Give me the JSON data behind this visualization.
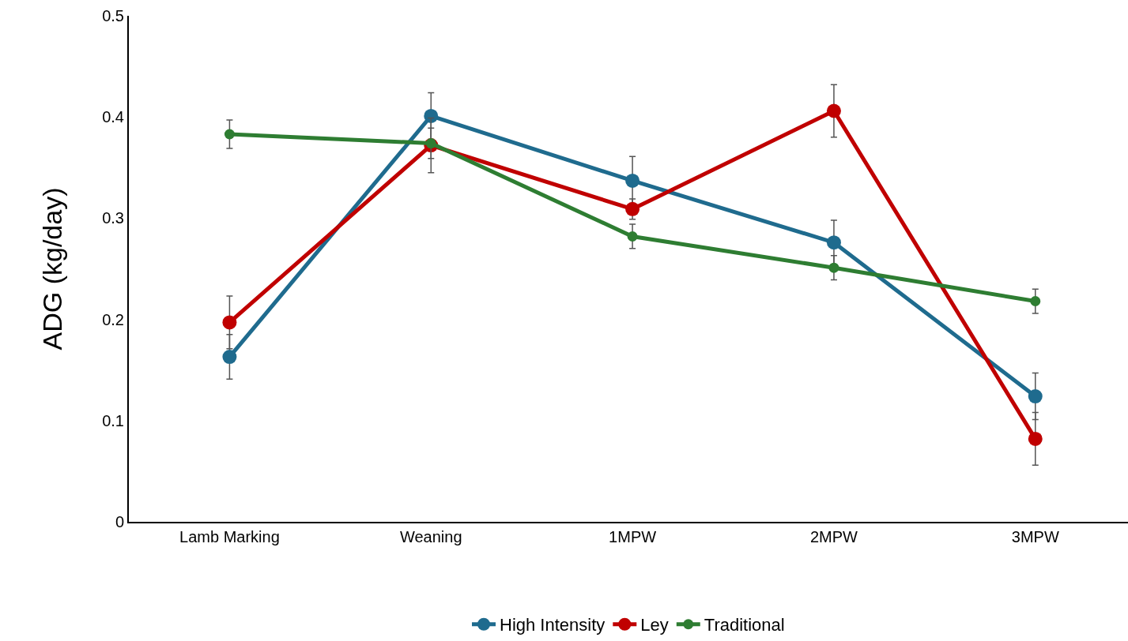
{
  "chart_data": {
    "type": "line",
    "ylabel": "ADG (kg/day)",
    "categories": [
      "Lamb Marking",
      "Weaning",
      "1MPW",
      "2MPW",
      "3MPW"
    ],
    "series": [
      {
        "name": "High Intensity",
        "color": "#1f6b8e",
        "values": [
          0.163,
          0.401,
          0.337,
          0.276,
          0.124
        ],
        "errors": [
          0.022,
          0.023,
          0.024,
          0.022,
          0.023
        ]
      },
      {
        "name": "Ley",
        "color": "#c00000",
        "values": [
          0.197,
          0.372,
          0.309,
          0.406,
          0.082
        ],
        "errors": [
          0.026,
          0.027,
          0.01,
          0.026,
          0.026
        ]
      },
      {
        "name": "Traditional",
        "color": "#2e7d32",
        "values": [
          0.383,
          0.374,
          0.282,
          0.251,
          0.218
        ],
        "errors": [
          0.014,
          0.015,
          0.012,
          0.012,
          0.012
        ]
      }
    ],
    "ylim": [
      0,
      0.5
    ],
    "yticks": [
      {
        "value": 0,
        "label": "0"
      },
      0.1,
      0.2,
      0.3,
      0.4,
      0.5
    ],
    "grid": false,
    "legend": "bottom",
    "marker": "circle",
    "line_style": "solid"
  }
}
